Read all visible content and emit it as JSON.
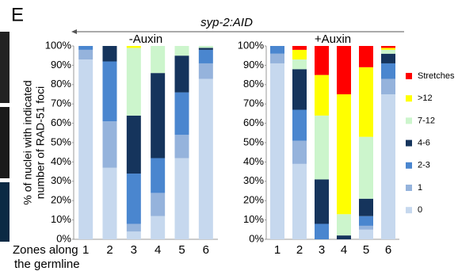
{
  "panel_label": "E",
  "title": "syp-2:AID",
  "chart_data": [
    {
      "type": "stacked_bar",
      "title": "-Auxin",
      "y_label_lines": [
        "% of nuclei with indicated",
        "number of RAD-51 foci"
      ],
      "x_label_lines": [
        "Zones along",
        "the germline"
      ],
      "categories": [
        "1",
        "2",
        "3",
        "4",
        "5",
        "6"
      ],
      "ylim": [
        0,
        100
      ],
      "yticks": [
        {
          "value": 0,
          "label": "0%"
        },
        {
          "value": 10,
          "label": "10%"
        },
        {
          "value": 20,
          "label": "20%"
        },
        {
          "value": 30,
          "label": "30%"
        },
        {
          "value": 40,
          "label": "40%"
        },
        {
          "value": 50,
          "label": "50%"
        },
        {
          "value": 60,
          "label": "60%"
        },
        {
          "value": 70,
          "label": "70%"
        },
        {
          "value": 80,
          "label": "80%"
        },
        {
          "value": 90,
          "label": "90%"
        },
        {
          "value": 100,
          "label": "100%"
        }
      ],
      "series": [
        {
          "color": "#c6d8ee",
          "values": [
            93,
            37,
            4,
            12,
            42,
            83
          ]
        },
        {
          "color": "#95b3dc",
          "values": [
            5,
            24,
            4,
            12,
            12,
            8
          ]
        },
        {
          "color": "#4a86cf",
          "values": [
            2,
            31,
            26,
            18,
            22,
            7
          ]
        },
        {
          "color": "#15345c",
          "values": [
            0,
            8,
            30,
            44,
            19,
            1
          ]
        },
        {
          "color": "#ccf5cc",
          "values": [
            0,
            0,
            35,
            14,
            5,
            1
          ]
        },
        {
          "color": "#ffff00",
          "values": [
            0,
            0,
            1,
            0,
            0,
            0
          ]
        },
        {
          "color": "#ff0000",
          "values": [
            0,
            0,
            0,
            0,
            0,
            0
          ]
        }
      ]
    },
    {
      "type": "stacked_bar",
      "title": "+Auxin",
      "categories": [
        "1",
        "2",
        "3",
        "4",
        "5",
        "6"
      ],
      "ylim": [
        0,
        100
      ],
      "yticks": [
        {
          "value": 0,
          "label": "0%"
        },
        {
          "value": 10,
          "label": "10%"
        },
        {
          "value": 20,
          "label": "20%"
        },
        {
          "value": 30,
          "label": "30%"
        },
        {
          "value": 40,
          "label": "40%"
        },
        {
          "value": 50,
          "label": "50%"
        },
        {
          "value": 60,
          "label": "60%"
        },
        {
          "value": 70,
          "label": "70%"
        },
        {
          "value": 80,
          "label": "80%"
        },
        {
          "value": 90,
          "label": "90%"
        },
        {
          "value": 100,
          "label": "100%"
        }
      ],
      "series": [
        {
          "name": "0",
          "color": "#c6d8ee",
          "values": [
            91,
            39,
            0,
            0,
            5,
            75
          ]
        },
        {
          "name": "1",
          "color": "#95b3dc",
          "values": [
            5,
            12,
            0,
            0,
            2,
            8
          ]
        },
        {
          "name": "2-3",
          "color": "#4a86cf",
          "values": [
            4,
            16,
            8,
            0,
            5,
            8
          ]
        },
        {
          "name": "4-6",
          "color": "#15345c",
          "values": [
            0,
            21,
            23,
            2,
            9,
            5
          ]
        },
        {
          "name": "7-12",
          "color": "#ccf5cc",
          "values": [
            0,
            5,
            33,
            11,
            32,
            2
          ]
        },
        {
          "name": ">12",
          "color": "#ffff00",
          "values": [
            0,
            5,
            21,
            62,
            36,
            1
          ]
        },
        {
          "name": "Stretches",
          "color": "#ff0000",
          "values": [
            0,
            2,
            15,
            25,
            11,
            1
          ]
        }
      ]
    }
  ]
}
